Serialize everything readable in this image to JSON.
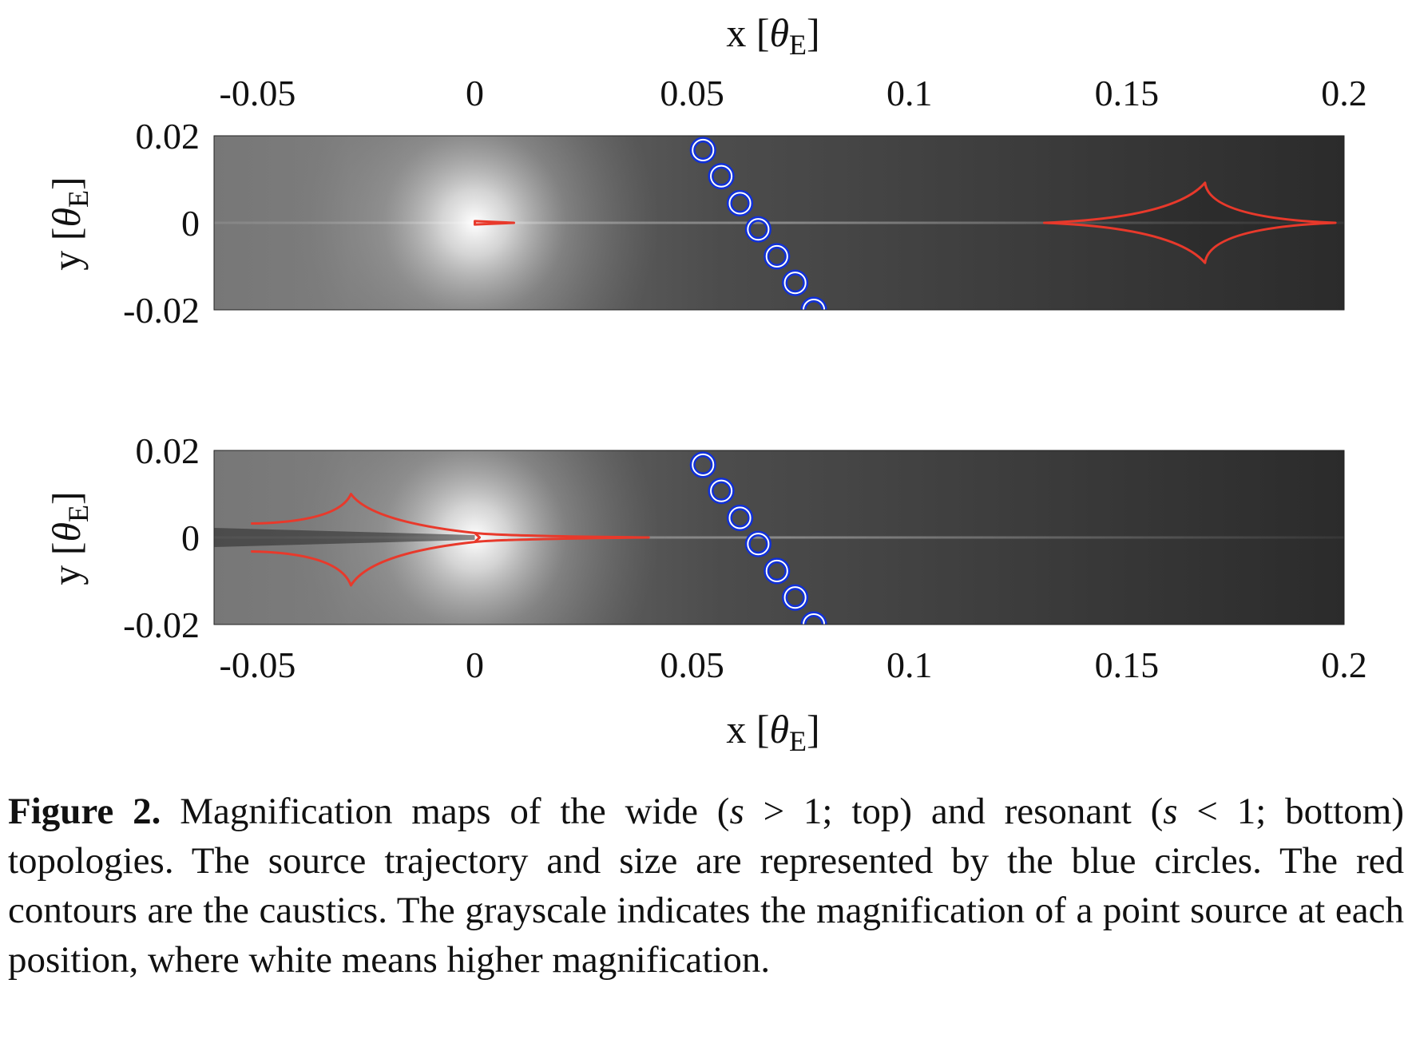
{
  "figure": {
    "x_axis": {
      "label_main": "x",
      "label_symbol": "θ",
      "label_sub": "E",
      "ticks": [
        "-0.05",
        "0",
        "0.05",
        "0.1",
        "0.15",
        "0.2"
      ],
      "tick_values": [
        -0.05,
        0,
        0.05,
        0.1,
        0.15,
        0.2
      ],
      "range": [
        -0.06,
        0.2
      ]
    },
    "y_axis": {
      "label_main": "y",
      "label_symbol": "θ",
      "label_sub": "E",
      "ticks": [
        "0.02",
        "0",
        "-0.02"
      ],
      "tick_values": [
        0.02,
        0,
        -0.02
      ],
      "range": [
        -0.02,
        0.02
      ]
    },
    "colors": {
      "caustic": "#e8392b",
      "trajectory": "#1030d8",
      "trajectory_inner": "#ffffff"
    }
  },
  "chart_data": [
    {
      "type": "heatmap",
      "panel": "top",
      "xlim": [
        -0.06,
        0.2
      ],
      "ylim": [
        -0.02,
        0.02
      ],
      "colormap": "grayscale (white = higher magnification)",
      "bright_spots": [
        {
          "x": 0.0,
          "y": 0.0
        }
      ],
      "source_trajectory": [
        {
          "x": 0.0525,
          "y": 0.0167
        },
        {
          "x": 0.0567,
          "y": 0.0107
        },
        {
          "x": 0.061,
          "y": 0.0045
        },
        {
          "x": 0.0652,
          "y": -0.0015
        },
        {
          "x": 0.0695,
          "y": -0.0077
        },
        {
          "x": 0.0737,
          "y": -0.0138
        },
        {
          "x": 0.078,
          "y": -0.02
        }
      ],
      "source_radius": 0.0024,
      "caustics": [
        {
          "kind": "small",
          "points": [
            [
              0.0,
              0.0004
            ],
            [
              0.009,
              0.0
            ],
            [
              0.0,
              -0.0004
            ]
          ]
        },
        {
          "kind": "astroid",
          "cusps": [
            [
              0.131,
              0.0
            ],
            [
              0.168,
              0.0092
            ],
            [
              0.198,
              0.0
            ],
            [
              0.168,
              -0.0092
            ]
          ]
        }
      ]
    },
    {
      "type": "heatmap",
      "panel": "bottom",
      "xlim": [
        -0.06,
        0.2
      ],
      "ylim": [
        -0.02,
        0.02
      ],
      "colormap": "grayscale (white = higher magnification)",
      "bright_spots": [
        {
          "x": 0.0,
          "y": 0.0
        }
      ],
      "source_trajectory": [
        {
          "x": 0.0525,
          "y": 0.0167
        },
        {
          "x": 0.0567,
          "y": 0.0107
        },
        {
          "x": 0.061,
          "y": 0.0045
        },
        {
          "x": 0.0652,
          "y": -0.0015
        },
        {
          "x": 0.0695,
          "y": -0.0077
        },
        {
          "x": 0.0737,
          "y": -0.0138
        },
        {
          "x": 0.078,
          "y": -0.02
        }
      ],
      "source_radius": 0.0024,
      "caustics": [
        {
          "kind": "resonant",
          "cusps": [
            [
              -0.0515,
              0.0032
            ],
            [
              -0.0285,
              0.01
            ],
            [
              0.0,
              0.0003
            ],
            [
              0.04,
              0.0
            ],
            [
              0.0,
              -0.0003
            ],
            [
              -0.0285,
              -0.011
            ],
            [
              -0.0515,
              -0.0032
            ]
          ]
        }
      ]
    }
  ],
  "caption": {
    "label": "Figure 2.",
    "t1": " Magnification maps of the wide (",
    "s_a": "s",
    "t2": " > 1; top) and resonant (",
    "s_b": "s",
    "t3": " < 1; bottom) topologies. The source trajectory and size are represented by the blue circles. The red contours are the caustics. The grayscale indicates the magnification of a point source at each position, where white means higher magnification."
  }
}
